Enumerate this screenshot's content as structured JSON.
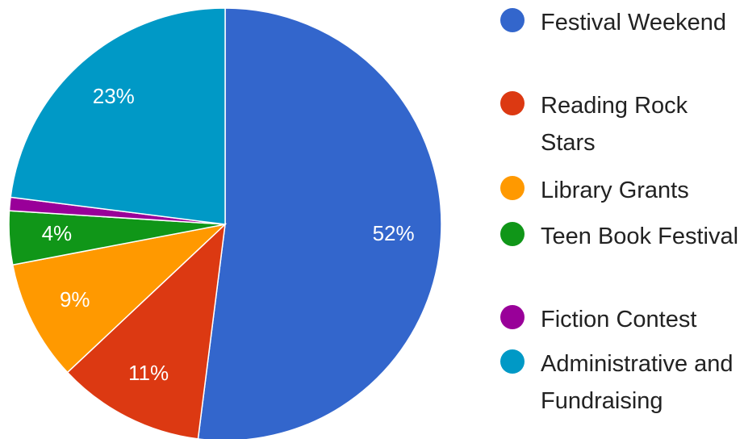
{
  "chart_data": {
    "type": "pie",
    "categories": [
      "Festival Weekend",
      "Reading Rock Stars",
      "Library Grants",
      "Teen Book Festival",
      "Fiction Contest",
      "Administrative and Fundraising"
    ],
    "values": [
      52,
      11,
      9,
      4,
      1,
      23
    ],
    "value_labels": [
      "52%",
      "11%",
      "9%",
      "4%",
      null,
      "23%"
    ],
    "colors": [
      "#3366cc",
      "#dc3912",
      "#ff9900",
      "#109618",
      "#990099",
      "#0099c6"
    ],
    "legend": "right"
  }
}
